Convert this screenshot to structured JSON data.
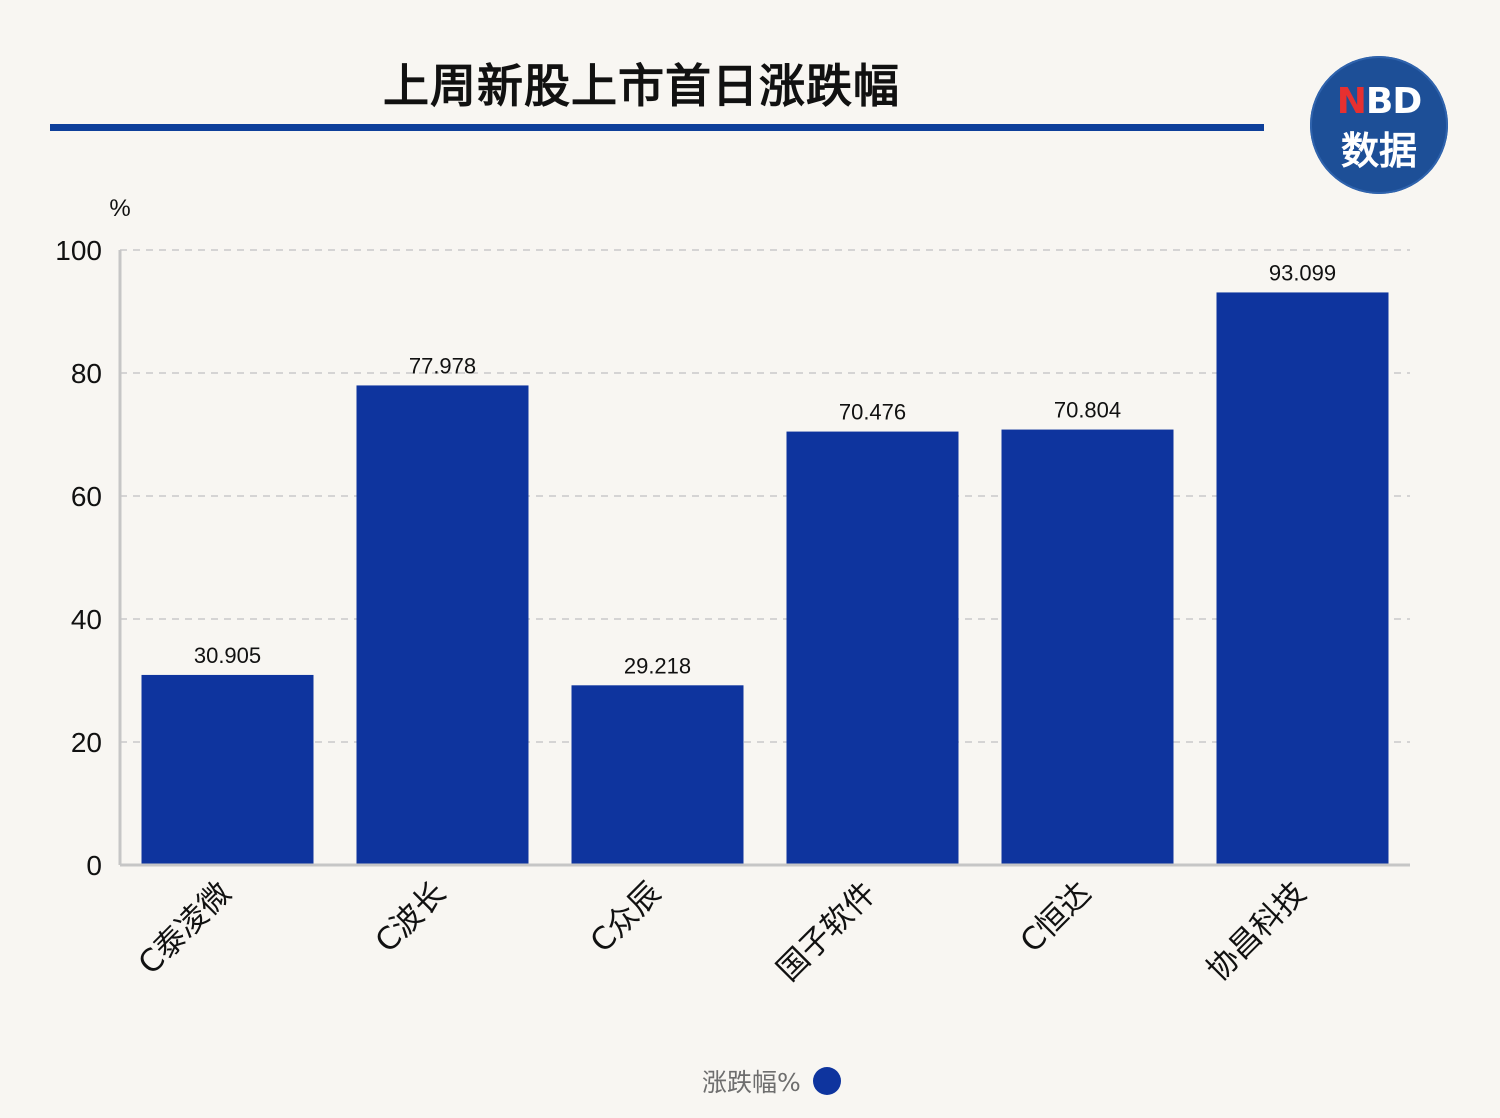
{
  "chart_data": {
    "type": "bar",
    "title": "上周新股上市首日涨跌幅",
    "ylabel": "%",
    "xlabel": "",
    "categories": [
      "C泰凌微",
      "C波长",
      "C众辰",
      "国子软件",
      "C恒达",
      "协昌科技"
    ],
    "series": [
      {
        "name": "涨跌幅%",
        "values": [
          30.905,
          77.978,
          29.218,
          70.476,
          70.804,
          93.099
        ]
      }
    ],
    "data_labels": [
      "30.905",
      "77.978",
      "29.218",
      "70.476",
      "70.804",
      "93.099"
    ],
    "ylim": [
      0,
      100
    ],
    "yticks": [
      0,
      20,
      40,
      60,
      80,
      100
    ],
    "grid": true,
    "legend_position": "bottom-center",
    "bar_color": "#0e349e"
  },
  "logo": {
    "line1_accent": "N",
    "line1_rest": "BD",
    "line2": "数据"
  },
  "colors": {
    "title_rule": "#0e3f9a",
    "logo_bg": "#1d4f97",
    "background": "#f8f6f2"
  }
}
